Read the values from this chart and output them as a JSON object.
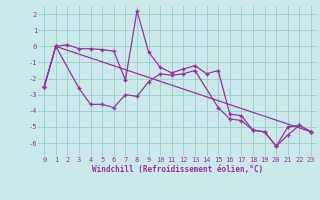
{
  "xlabel": "Windchill (Refroidissement éolien,°C)",
  "xlim": [
    -0.5,
    23.5
  ],
  "ylim": [
    -6.8,
    2.5
  ],
  "yticks": [
    2,
    1,
    0,
    -1,
    -2,
    -3,
    -4,
    -5,
    -6
  ],
  "xticks": [
    0,
    1,
    2,
    3,
    4,
    5,
    6,
    7,
    8,
    9,
    10,
    11,
    12,
    13,
    14,
    15,
    16,
    17,
    18,
    19,
    20,
    21,
    22,
    23
  ],
  "bg_color": "#cce9e9",
  "grid_color": "#99cccc",
  "line_color": "#993399",
  "line1_x": [
    0,
    1,
    2,
    3,
    4,
    5,
    6,
    7,
    8,
    9,
    10,
    11,
    12,
    13,
    14,
    15,
    16,
    17,
    18,
    19,
    20,
    21,
    22,
    23
  ],
  "line1_y": [
    -2.5,
    0.0,
    0.1,
    -0.15,
    -0.15,
    -0.2,
    -0.3,
    -2.1,
    2.2,
    -0.35,
    -1.3,
    -1.65,
    -1.4,
    -1.2,
    -1.7,
    -1.5,
    -4.2,
    -4.3,
    -5.2,
    -5.3,
    -6.2,
    -5.0,
    -4.9,
    -5.3
  ],
  "line2_x": [
    0,
    1,
    3,
    4,
    5,
    6,
    7,
    8,
    9,
    10,
    11,
    12,
    13,
    15,
    16,
    17,
    18,
    19,
    20,
    21,
    22,
    23
  ],
  "line2_y": [
    -2.5,
    0.0,
    -2.6,
    -3.6,
    -3.6,
    -3.8,
    -3.0,
    -3.1,
    -2.2,
    -1.7,
    -1.8,
    -1.7,
    -1.5,
    -3.8,
    -4.5,
    -4.6,
    -5.2,
    -5.3,
    -6.2,
    -5.5,
    -4.9,
    -5.3
  ],
  "line3_x": [
    0,
    1,
    23
  ],
  "line3_y": [
    -2.5,
    0.0,
    -5.3
  ],
  "tick_color": "#993399",
  "xlabel_fontsize": 5.5,
  "tick_fontsize": 5.0
}
